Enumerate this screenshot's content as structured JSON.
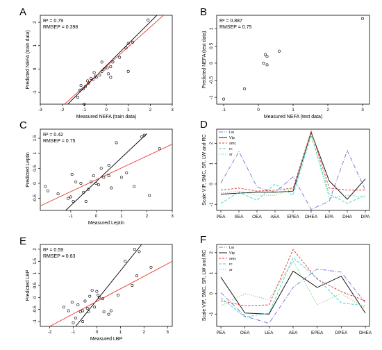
{
  "charts": [
    {
      "id": "A",
      "type": "scatter",
      "panel_label": "A",
      "xlabel": "Measured NEFA (train data)",
      "ylabel": "Predicted NEFA (train data)",
      "stats": [
        "R² = 0.79",
        "RMSEP = 0.398"
      ],
      "xlim": [
        -3,
        3
      ],
      "ylim": [
        -1.5,
        2.3
      ],
      "xticks": [
        -3,
        -2,
        -1,
        0,
        1,
        2,
        3
      ],
      "yticks": [
        -1,
        0,
        1,
        2
      ],
      "points": [
        [
          -1.0,
          -1.5
        ],
        [
          -1.3,
          -1.2
        ],
        [
          -1.2,
          -0.9
        ],
        [
          -1.05,
          -0.85
        ],
        [
          -0.95,
          -0.75
        ],
        [
          -1.15,
          -0.7
        ],
        [
          -0.8,
          -0.6
        ],
        [
          -0.85,
          -0.5
        ],
        [
          -0.6,
          -0.45
        ],
        [
          -0.7,
          -0.4
        ],
        [
          -0.45,
          -0.35
        ],
        [
          -0.5,
          -0.3
        ],
        [
          -0.3,
          -0.25
        ],
        [
          -0.55,
          -0.15
        ],
        [
          -0.2,
          -0.1
        ],
        [
          -0.1,
          0.0
        ],
        [
          0.1,
          -0.2
        ],
        [
          0.05,
          0.05
        ],
        [
          0.2,
          0.1
        ],
        [
          0.3,
          0.3
        ],
        [
          -0.2,
          0.3
        ],
        [
          0.6,
          0.5
        ],
        [
          0.9,
          0.9
        ],
        [
          1.0,
          1.1
        ],
        [
          1.2,
          1.15
        ],
        [
          1.0,
          -0.1
        ],
        [
          0.2,
          -0.35
        ],
        [
          1.9,
          2.1
        ]
      ],
      "lines": [
        {
          "color": "#000000",
          "x": [
            -1.75,
            2.3
          ],
          "y": [
            -1.5,
            2.3
          ]
        },
        {
          "color": "#e8382f",
          "x": [
            -1.9,
            2.6
          ],
          "y": [
            -1.5,
            2.3
          ]
        }
      ]
    },
    {
      "id": "B",
      "type": "scatter",
      "panel_label": "B",
      "xlabel": "Measured NEFA (test data)",
      "ylabel": "Predicted NEFA (test data)",
      "stats": [
        "R² = 0.887",
        "RMSEP = 0.75"
      ],
      "xlim": [
        -1.2,
        3.2
      ],
      "ylim": [
        -1.2,
        1.4
      ],
      "xticks": [
        -1,
        0,
        1,
        2,
        3
      ],
      "yticks": [
        -1,
        -0.5,
        0,
        0.5,
        1
      ],
      "points": [
        [
          -1.0,
          -1.05
        ],
        [
          -0.4,
          -0.75
        ],
        [
          0.2,
          0.25
        ],
        [
          0.25,
          0.2
        ],
        [
          0.15,
          0.0
        ],
        [
          0.25,
          -0.05
        ],
        [
          0.6,
          0.35
        ],
        [
          3.0,
          1.3
        ]
      ],
      "lines": []
    },
    {
      "id": "C",
      "type": "scatter",
      "panel_label": "C",
      "xlabel": "Measured Leptin",
      "ylabel": "Predicted Leptin",
      "stats": [
        "R² = 0.42",
        "RMSEP = 0.75"
      ],
      "xlim": [
        -2.2,
        3.0
      ],
      "ylim": [
        -0.9,
        1.8
      ],
      "xticks": [
        -1,
        0,
        1,
        2,
        3
      ],
      "yticks": [
        -0.5,
        0.0,
        0.5,
        1.0,
        1.5
      ],
      "points": [
        [
          -1.9,
          -0.25
        ],
        [
          -2.0,
          -0.1
        ],
        [
          -1.5,
          -0.35
        ],
        [
          -1.1,
          -0.5
        ],
        [
          -1.0,
          -0.45
        ],
        [
          -0.9,
          -0.6
        ],
        [
          -0.95,
          0.3
        ],
        [
          -0.8,
          0.05
        ],
        [
          -0.6,
          0.0
        ],
        [
          -0.5,
          -0.3
        ],
        [
          -0.3,
          -0.2
        ],
        [
          -0.2,
          0.05
        ],
        [
          -0.1,
          0.25
        ],
        [
          0.0,
          0.0
        ],
        [
          0.1,
          -0.05
        ],
        [
          0.2,
          0.5
        ],
        [
          0.3,
          0.2
        ],
        [
          0.5,
          0.25
        ],
        [
          0.6,
          -0.15
        ],
        [
          0.8,
          1.35
        ],
        [
          0.5,
          0.6
        ],
        [
          1.0,
          0.2
        ],
        [
          1.2,
          0.35
        ],
        [
          1.5,
          -0.1
        ],
        [
          1.8,
          1.55
        ],
        [
          1.9,
          1.6
        ],
        [
          2.1,
          -0.4
        ],
        [
          2.5,
          1.15
        ],
        [
          -0.4,
          -0.6
        ]
      ],
      "lines": [
        {
          "color": "#000000",
          "x": [
            -1.2,
            2.0
          ],
          "y": [
            -0.9,
            1.65
          ]
        },
        {
          "color": "#e8382f",
          "x": [
            -2.2,
            3.0
          ],
          "y": [
            -0.75,
            1.3
          ]
        }
      ]
    },
    {
      "id": "D",
      "type": "line",
      "panel_label": "D",
      "ylabel": "Scale VIP, SMC, SR, LW and RC",
      "categories": [
        "PEA",
        "SEA",
        "OEA",
        "AEA",
        "EPEA",
        "DHEA",
        "EPA",
        "DHA",
        "DPA"
      ],
      "ylim": [
        -1.3,
        2.7
      ],
      "yticks": [
        -1,
        0,
        1,
        2
      ],
      "legend_position": "top-left",
      "series": [
        {
          "name": "Lw",
          "color": "#7b7fd6",
          "dash": "6 2 1 2",
          "values": [
            0.05,
            1.6,
            -0.15,
            -0.4,
            0.35,
            -1.25,
            -0.85,
            1.65,
            -0.3
          ]
        },
        {
          "name": "Vip",
          "color": "#1a1a1a",
          "dash": "",
          "values": [
            -0.5,
            -0.45,
            -0.4,
            -0.4,
            -0.35,
            2.55,
            0.15,
            -0.75,
            0.25
          ]
        },
        {
          "name": "smc",
          "color": "#e8382f",
          "dash": "3 2",
          "values": [
            -0.3,
            -0.2,
            -0.35,
            -0.3,
            -0.2,
            2.6,
            -0.2,
            -0.3,
            -0.3
          ]
        },
        {
          "name": "rc",
          "color": "#4ad6d6",
          "dash": "4 2",
          "values": [
            -0.95,
            -0.4,
            -0.8,
            0.0,
            -0.55,
            2.4,
            -0.5,
            -0.95,
            -0.55
          ]
        },
        {
          "name": "sr",
          "color": "#58c85a",
          "dash": "1 2",
          "values": [
            -0.45,
            -0.35,
            -0.55,
            -0.55,
            -0.25,
            2.45,
            -0.7,
            -0.55,
            -0.65
          ]
        }
      ]
    },
    {
      "id": "E",
      "type": "scatter",
      "panel_label": "E",
      "xlabel": "Measured LBP",
      "ylabel": "Predicted LBP",
      "stats": [
        "R² = 0.59",
        "RMSEP = 0.63"
      ],
      "xlim": [
        -2.4,
        3.2
      ],
      "ylim": [
        -1.2,
        2.2
      ],
      "xticks": [
        -2,
        -1,
        0,
        1,
        2,
        3
      ],
      "yticks": [
        -1.0,
        -0.5,
        0.0,
        0.5,
        1.0,
        1.5,
        2.0
      ],
      "points": [
        [
          -1.4,
          -0.4
        ],
        [
          -1.2,
          -0.55
        ],
        [
          -1.05,
          -0.2
        ],
        [
          -1.0,
          -1.05
        ],
        [
          -0.9,
          -0.85
        ],
        [
          -0.8,
          -0.3
        ],
        [
          -0.7,
          -0.6
        ],
        [
          -0.6,
          -1.0
        ],
        [
          -0.5,
          -0.15
        ],
        [
          -0.4,
          -0.45
        ],
        [
          -0.35,
          -0.6
        ],
        [
          -0.3,
          0.05
        ],
        [
          -0.2,
          0.3
        ],
        [
          -0.1,
          -0.4
        ],
        [
          0.0,
          0.25
        ],
        [
          0.05,
          0.1
        ],
        [
          0.1,
          0.0
        ],
        [
          0.25,
          -0.05
        ],
        [
          0.3,
          -0.6
        ],
        [
          0.5,
          -0.7
        ],
        [
          0.6,
          -0.55
        ],
        [
          0.9,
          0.1
        ],
        [
          1.2,
          1.5
        ],
        [
          1.5,
          0.5
        ],
        [
          1.6,
          2.0
        ],
        [
          1.7,
          0.9
        ],
        [
          1.8,
          1.9
        ],
        [
          2.3,
          1.25
        ],
        [
          -0.6,
          -0.55
        ]
      ],
      "lines": [
        {
          "color": "#000000",
          "x": [
            -0.9,
            1.9
          ],
          "y": [
            -1.2,
            2.2
          ]
        },
        {
          "color": "#e8382f",
          "x": [
            -2.0,
            3.2
          ],
          "y": [
            -1.2,
            1.5
          ]
        }
      ]
    },
    {
      "id": "F",
      "type": "line",
      "panel_label": "F",
      "ylabel": "Scale VIP, SMC, SR, LW and RC",
      "categories": [
        "PEA",
        "OEA",
        "LEA",
        "AEA",
        "EPEA",
        "DPEA",
        "DHEA"
      ],
      "ylim": [
        -1.6,
        2.4
      ],
      "yticks": [
        -1,
        0,
        1,
        2
      ],
      "legend_position": "top-left",
      "series": [
        {
          "name": "Lw",
          "color": "#7b7fd6",
          "dash": "6 2 1 2",
          "values": [
            0.05,
            -1.1,
            -1.45,
            0.3,
            1.2,
            1.05,
            -0.45
          ]
        },
        {
          "name": "Vip",
          "color": "#1a1a1a",
          "dash": "",
          "values": [
            0.8,
            -0.95,
            -1.0,
            1.1,
            0.3,
            0.85,
            -0.95
          ]
        },
        {
          "name": "smc",
          "color": "#e8382f",
          "dash": "3 2",
          "values": [
            -0.35,
            -0.6,
            -0.55,
            2.15,
            0.7,
            0.1,
            -0.35
          ]
        },
        {
          "name": "rc",
          "color": "#4ad6d6",
          "dash": "4 2",
          "values": [
            -0.2,
            -1.15,
            -0.95,
            1.75,
            0.75,
            -0.45,
            -0.6
          ]
        },
        {
          "name": "sr",
          "color": "#58c85a",
          "dash": "1 2",
          "values": [
            -0.6,
            0.0,
            -0.3,
            1.6,
            -0.55,
            0.0,
            -0.7
          ]
        }
      ]
    }
  ]
}
